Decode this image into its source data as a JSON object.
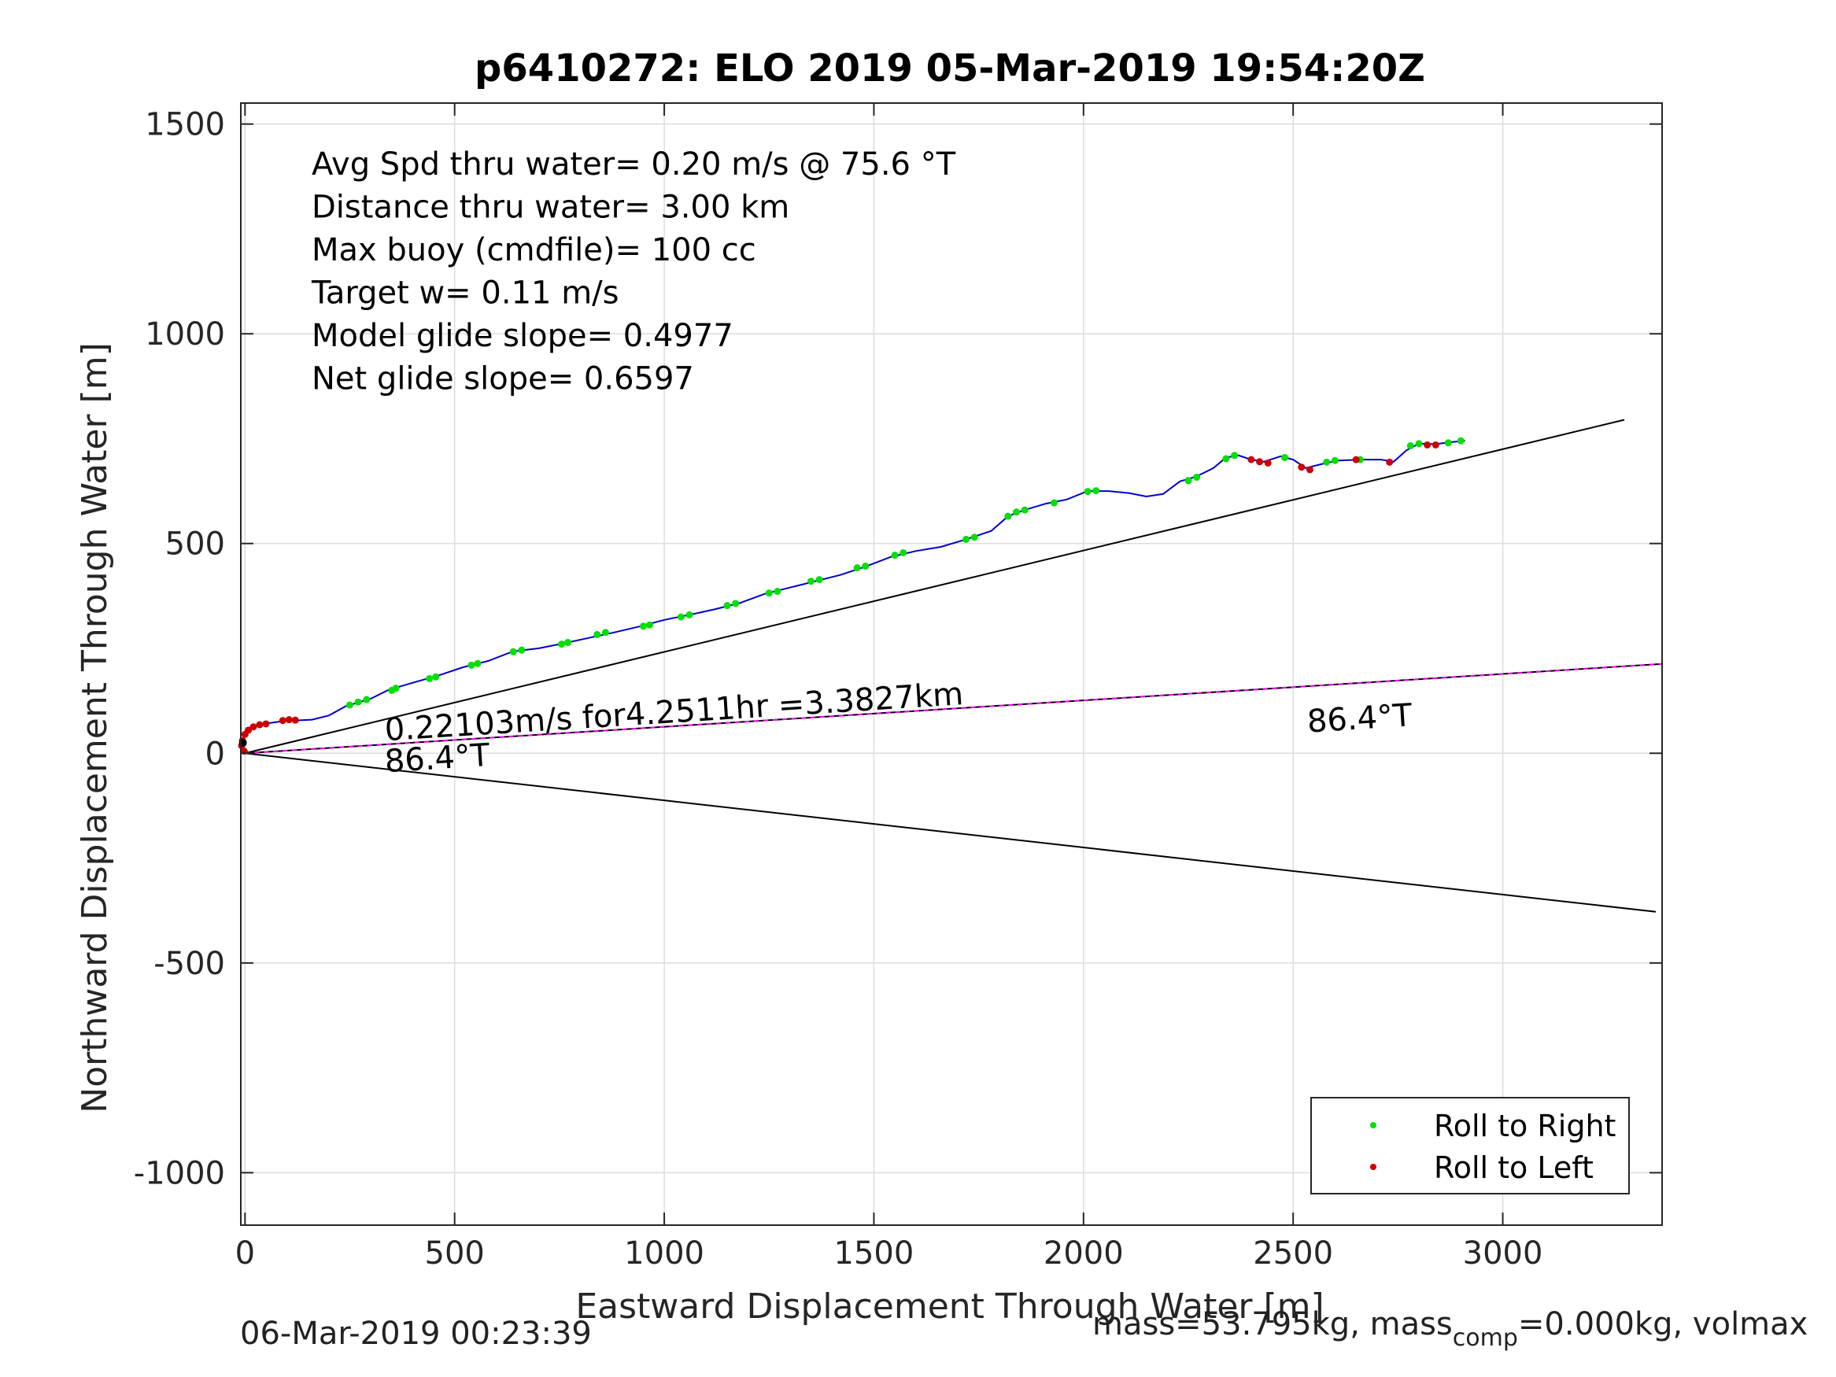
{
  "chart_data": {
    "type": "scatter",
    "title": "p6410272: ELO 2019 05-Mar-2019 19:54:20Z",
    "xlabel": "Eastward Displacement Through Water [m]",
    "ylabel": "Northward Displacement Through Water [m]",
    "xlim": [
      -10,
      3380
    ],
    "ylim": [
      -1125,
      1550
    ],
    "xticks": [
      0,
      500,
      1000,
      1500,
      2000,
      2500,
      3000
    ],
    "yticks": [
      -1000,
      -500,
      0,
      500,
      1000,
      1500
    ],
    "xtick_labels": [
      "0",
      "500",
      "1000",
      "1500",
      "2000",
      "2500",
      "3000"
    ],
    "ytick_labels": [
      "-1000",
      "-500",
      "0",
      "500",
      "1000",
      "1500"
    ],
    "grid": true,
    "legend_position": "bottom-right",
    "info_lines": [
      "Avg Spd thru water=  0.20 m/s @  75.6 °T",
      "Distance thru water=  3.00 km",
      "Max buoy (cmdfile)= 100 cc",
      "Target w= 0.11 m/s",
      "Model glide slope= 0.4977",
      "Net glide slope= 0.6597"
    ],
    "track": {
      "color": "#0000cc",
      "points": [
        [
          0,
          0
        ],
        [
          -8,
          15
        ],
        [
          -5,
          35
        ],
        [
          5,
          50
        ],
        [
          20,
          62
        ],
        [
          45,
          70
        ],
        [
          80,
          75
        ],
        [
          120,
          78
        ],
        [
          160,
          80
        ],
        [
          200,
          90
        ],
        [
          240,
          112
        ],
        [
          300,
          130
        ],
        [
          340,
          150
        ],
        [
          400,
          168
        ],
        [
          460,
          185
        ],
        [
          520,
          205
        ],
        [
          580,
          220
        ],
        [
          640,
          243
        ],
        [
          700,
          250
        ],
        [
          760,
          262
        ],
        [
          820,
          275
        ],
        [
          880,
          288
        ],
        [
          940,
          302
        ],
        [
          1000,
          318
        ],
        [
          1060,
          330
        ],
        [
          1120,
          343
        ],
        [
          1180,
          358
        ],
        [
          1240,
          380
        ],
        [
          1300,
          395
        ],
        [
          1360,
          410
        ],
        [
          1420,
          425
        ],
        [
          1480,
          445
        ],
        [
          1540,
          468
        ],
        [
          1600,
          482
        ],
        [
          1660,
          492
        ],
        [
          1720,
          510
        ],
        [
          1780,
          530
        ],
        [
          1820,
          565
        ],
        [
          1860,
          580
        ],
        [
          1910,
          595
        ],
        [
          1960,
          605
        ],
        [
          2010,
          625
        ],
        [
          2060,
          625
        ],
        [
          2110,
          620
        ],
        [
          2150,
          612
        ],
        [
          2190,
          618
        ],
        [
          2230,
          648
        ],
        [
          2270,
          660
        ],
        [
          2310,
          680
        ],
        [
          2340,
          705
        ],
        [
          2370,
          710
        ],
        [
          2400,
          700
        ],
        [
          2430,
          695
        ],
        [
          2470,
          708
        ],
        [
          2500,
          700
        ],
        [
          2530,
          680
        ],
        [
          2570,
          690
        ],
        [
          2610,
          698
        ],
        [
          2660,
          700
        ],
        [
          2710,
          700
        ],
        [
          2740,
          695
        ],
        [
          2770,
          722
        ],
        [
          2800,
          738
        ],
        [
          2840,
          737
        ],
        [
          2880,
          742
        ],
        [
          2910,
          745
        ]
      ]
    },
    "series": [
      {
        "name": "Roll to Right",
        "color": "#00e000",
        "points": [
          [
            250,
            115
          ],
          [
            270,
            122
          ],
          [
            290,
            128
          ],
          [
            350,
            150
          ],
          [
            360,
            155
          ],
          [
            440,
            178
          ],
          [
            455,
            182
          ],
          [
            540,
            210
          ],
          [
            555,
            214
          ],
          [
            640,
            242
          ],
          [
            660,
            246
          ],
          [
            755,
            260
          ],
          [
            770,
            264
          ],
          [
            840,
            283
          ],
          [
            860,
            288
          ],
          [
            950,
            303
          ],
          [
            965,
            306
          ],
          [
            1040,
            325
          ],
          [
            1060,
            330
          ],
          [
            1150,
            352
          ],
          [
            1170,
            357
          ],
          [
            1250,
            382
          ],
          [
            1270,
            386
          ],
          [
            1350,
            410
          ],
          [
            1370,
            414
          ],
          [
            1460,
            442
          ],
          [
            1480,
            446
          ],
          [
            1550,
            472
          ],
          [
            1570,
            478
          ],
          [
            1720,
            510
          ],
          [
            1740,
            515
          ],
          [
            1820,
            565
          ],
          [
            1840,
            575
          ],
          [
            1860,
            580
          ],
          [
            1930,
            597
          ],
          [
            2010,
            624
          ],
          [
            2030,
            626
          ],
          [
            2250,
            650
          ],
          [
            2270,
            658
          ],
          [
            2340,
            702
          ],
          [
            2360,
            710
          ],
          [
            2480,
            705
          ],
          [
            2580,
            694
          ],
          [
            2600,
            698
          ],
          [
            2660,
            700
          ],
          [
            2780,
            733
          ],
          [
            2800,
            738
          ],
          [
            2870,
            740
          ],
          [
            2900,
            745
          ]
        ]
      },
      {
        "name": "Roll to Left",
        "color": "#cc0000",
        "points": [
          [
            -2,
            5
          ],
          [
            -8,
            18
          ],
          [
            -6,
            30
          ],
          [
            0,
            45
          ],
          [
            8,
            55
          ],
          [
            20,
            63
          ],
          [
            35,
            68
          ],
          [
            50,
            70
          ],
          [
            90,
            78
          ],
          [
            105,
            80
          ],
          [
            120,
            79
          ],
          [
            2400,
            700
          ],
          [
            2420,
            695
          ],
          [
            2440,
            692
          ],
          [
            2520,
            682
          ],
          [
            2540,
            676
          ],
          [
            2650,
            700
          ],
          [
            2730,
            694
          ],
          [
            2820,
            735
          ],
          [
            2840,
            735
          ]
        ]
      }
    ],
    "lines": [
      {
        "from": [
          0,
          0
        ],
        "to": [
          3290,
          795
        ],
        "color": "#000000"
      },
      {
        "from": [
          0,
          0
        ],
        "to": [
          3380,
          213
        ],
        "color": "#000000"
      },
      {
        "from": [
          0,
          0
        ],
        "to": [
          3380,
          213
        ],
        "color": "#ff00ff",
        "dashed": true
      },
      {
        "from": [
          0,
          0
        ],
        "to": [
          3365,
          -378
        ],
        "color": "#000000"
      }
    ],
    "annotations": [
      {
        "text": "0.22103m/s for4.2511hr =3.3827km",
        "x": 335,
        "y": 30,
        "rotate": -3.6
      },
      {
        "text": "86.4°T",
        "x": 335,
        "y": -45,
        "rotate": -3.6
      },
      {
        "text": "86.4°T",
        "x": 2535,
        "y": 50,
        "rotate": -3.6
      }
    ]
  },
  "footer": {
    "timestamp": "06-Mar-2019 00:23:39",
    "mass_text": "mass=53.795kg, mass",
    "mass_sub": "comp",
    "mass_rest": "=0.000kg, volmax"
  }
}
